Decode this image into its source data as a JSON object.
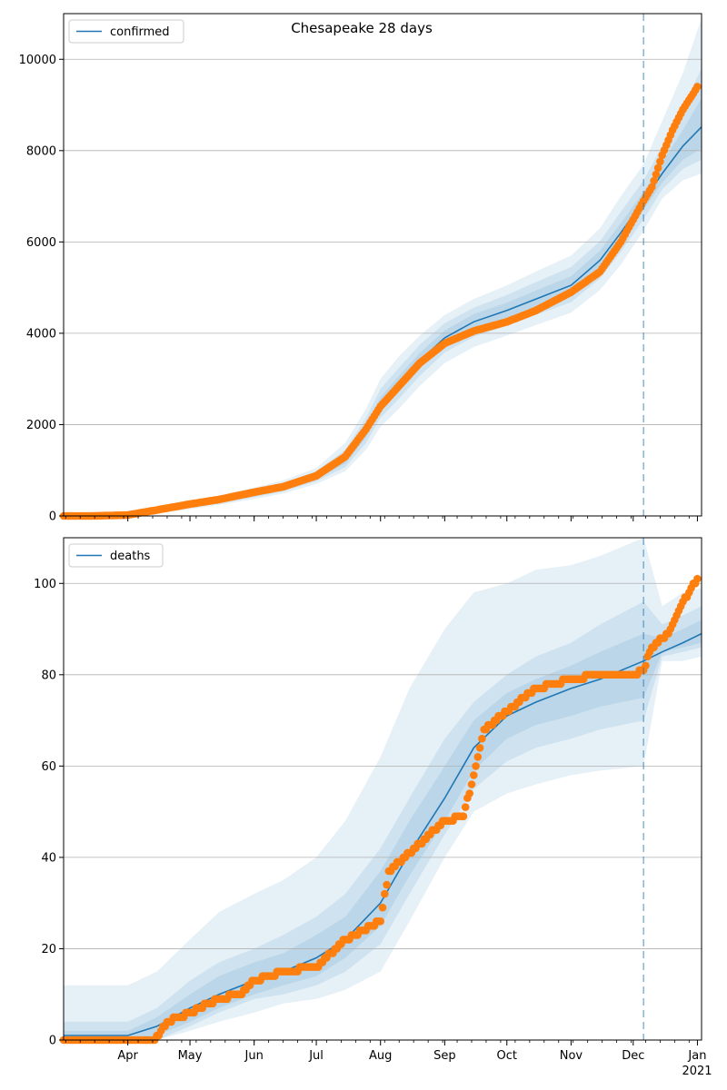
{
  "title": "Chesapeake 28 days",
  "colors": {
    "model": "#1f77b4",
    "observed": "#ff7f0e",
    "band": "#1f77b4",
    "grid": "#b0b0b0",
    "forecast_line": "#1f77b4"
  },
  "x_axis": {
    "tick_labels": [
      "Apr",
      "May",
      "Jun",
      "Jul",
      "Aug",
      "Sep",
      "Oct",
      "Nov",
      "Dec",
      "Jan"
    ],
    "year_label": "2021"
  },
  "chart_data": [
    {
      "type": "line",
      "legend": "confirmed",
      "legend_position": "top-left",
      "grid": "y",
      "xlim": [
        "2020-03-01",
        "2021-01-03"
      ],
      "ylim": [
        0,
        11000
      ],
      "yticks": [
        0,
        2000,
        4000,
        6000,
        8000,
        10000
      ],
      "forecast_start": "2020-12-06",
      "model": {
        "x": [
          "2020-03-01",
          "2020-03-15",
          "2020-04-01",
          "2020-04-15",
          "2020-05-01",
          "2020-05-15",
          "2020-06-01",
          "2020-06-15",
          "2020-07-01",
          "2020-07-15",
          "2020-07-25",
          "2020-08-01",
          "2020-08-10",
          "2020-08-20",
          "2020-09-01",
          "2020-09-15",
          "2020-10-01",
          "2020-10-15",
          "2020-11-01",
          "2020-11-15",
          "2020-11-25",
          "2020-12-06",
          "2020-12-15",
          "2020-12-25",
          "2021-01-03"
        ],
        "y": [
          0,
          0,
          20,
          120,
          230,
          330,
          480,
          620,
          860,
          1250,
          1850,
          2450,
          2900,
          3400,
          3900,
          4250,
          4500,
          4750,
          5050,
          5600,
          6200,
          6900,
          7500,
          8100,
          8520
        ]
      },
      "bands": [
        {
          "lower": [
            0,
            0,
            0,
            60,
            150,
            240,
            370,
            490,
            700,
            980,
            1450,
            1950,
            2350,
            2850,
            3350,
            3700,
            3950,
            4180,
            4450,
            4950,
            5500,
            6250,
            6950,
            7350,
            7500
          ],
          "upper": [
            10,
            20,
            50,
            180,
            320,
            440,
            620,
            780,
            1050,
            1600,
            2350,
            3000,
            3500,
            3950,
            4400,
            4750,
            5050,
            5350,
            5700,
            6300,
            7000,
            7700,
            8650,
            9700,
            10900
          ]
        },
        {
          "lower": [
            0,
            0,
            5,
            80,
            175,
            270,
            410,
            540,
            760,
            1070,
            1600,
            2150,
            2570,
            3070,
            3580,
            3920,
            4170,
            4400,
            4680,
            5200,
            5780,
            6500,
            7150,
            7600,
            7800
          ],
          "upper": [
            5,
            10,
            40,
            160,
            290,
            400,
            570,
            720,
            980,
            1450,
            2150,
            2780,
            3250,
            3750,
            4220,
            4560,
            4840,
            5120,
            5450,
            6020,
            6660,
            7350,
            8100,
            8950,
            9800
          ]
        },
        {
          "lower": [
            0,
            0,
            10,
            95,
            195,
            295,
            440,
            575,
            810,
            1150,
            1720,
            2300,
            2730,
            3230,
            3740,
            4080,
            4330,
            4560,
            4850,
            5390,
            5990,
            6700,
            7300,
            7800,
            8050
          ],
          "upper": [
            2,
            5,
            30,
            145,
            265,
            365,
            520,
            665,
            910,
            1350,
            1980,
            2600,
            3070,
            3570,
            4060,
            4420,
            4670,
            4940,
            5250,
            5810,
            6410,
            7100,
            7750,
            8450,
            9150
          ]
        }
      ],
      "observed": {
        "x": [
          "2020-03-01",
          "2020-03-15",
          "2020-04-01",
          "2020-04-15",
          "2020-05-01",
          "2020-05-15",
          "2020-06-01",
          "2020-06-15",
          "2020-07-01",
          "2020-07-15",
          "2020-07-25",
          "2020-08-01",
          "2020-08-10",
          "2020-08-20",
          "2020-09-01",
          "2020-09-15",
          "2020-10-01",
          "2020-10-15",
          "2020-11-01",
          "2020-11-15",
          "2020-11-25",
          "2020-12-06",
          "2020-12-10",
          "2020-12-15",
          "2020-12-20",
          "2020-12-25",
          "2020-12-30",
          "2021-01-01"
        ],
        "y": [
          0,
          0,
          20,
          130,
          260,
          360,
          520,
          640,
          880,
          1300,
          1900,
          2400,
          2850,
          3350,
          3780,
          4050,
          4250,
          4500,
          4900,
          5350,
          6000,
          6900,
          7200,
          7900,
          8450,
          8900,
          9250,
          9400
        ]
      }
    },
    {
      "type": "line",
      "legend": "deaths",
      "legend_position": "top-left",
      "grid": "y",
      "xlim": [
        "2020-03-01",
        "2021-01-03"
      ],
      "ylim": [
        0,
        110
      ],
      "yticks": [
        0,
        20,
        40,
        60,
        80,
        100
      ],
      "forecast_start": "2020-12-06",
      "model": {
        "x": [
          "2020-03-01",
          "2020-04-01",
          "2020-04-15",
          "2020-05-01",
          "2020-05-15",
          "2020-06-01",
          "2020-06-15",
          "2020-07-01",
          "2020-07-15",
          "2020-08-01",
          "2020-08-15",
          "2020-09-01",
          "2020-09-15",
          "2020-10-01",
          "2020-10-15",
          "2020-11-01",
          "2020-11-15",
          "2020-12-06",
          "2020-12-15",
          "2020-12-25",
          "2021-01-03"
        ],
        "y": [
          1,
          1,
          3,
          7,
          10,
          13,
          15,
          18,
          22,
          30,
          41,
          53,
          64,
          71,
          74,
          77,
          79,
          83,
          85,
          87,
          89
        ]
      },
      "bands": [
        {
          "lower": [
            0,
            0,
            0,
            2,
            4,
            6,
            8,
            9,
            11,
            15,
            26,
            40,
            50,
            54,
            56,
            58,
            59,
            60,
            83,
            83,
            84
          ],
          "upper": [
            12,
            12,
            15,
            22,
            28,
            32,
            35,
            40,
            48,
            62,
            77,
            90,
            98,
            100,
            103,
            104,
            106,
            110,
            95,
            98,
            99
          ]
        },
        {
          "lower": [
            0,
            0,
            0,
            3,
            6,
            9,
            10,
            12,
            15,
            21,
            32,
            45,
            55,
            61,
            64,
            66,
            68,
            70,
            84,
            85,
            86
          ],
          "upper": [
            4,
            4,
            7,
            13,
            17,
            20,
            23,
            27,
            32,
            42,
            53,
            66,
            74,
            80,
            84,
            87,
            91,
            96,
            91,
            93,
            95
          ]
        },
        {
          "lower": [
            0,
            0,
            1,
            4,
            7,
            10,
            12,
            14,
            18,
            25,
            36,
            48,
            59,
            66,
            69,
            71,
            73,
            75,
            85,
            86,
            87
          ],
          "upper": [
            2,
            2,
            5,
            10,
            14,
            17,
            19,
            23,
            27,
            37,
            48,
            60,
            70,
            76,
            79,
            82,
            85,
            89,
            88,
            90,
            92
          ]
        }
      ],
      "observed": {
        "x": [
          "2020-03-01",
          "2020-04-14",
          "2020-04-20",
          "2020-05-01",
          "2020-05-15",
          "2020-05-25",
          "2020-06-01",
          "2020-06-15",
          "2020-07-01",
          "2020-07-15",
          "2020-08-01",
          "2020-08-05",
          "2020-08-15",
          "2020-09-01",
          "2020-09-10",
          "2020-09-15",
          "2020-09-20",
          "2020-10-01",
          "2020-10-15",
          "2020-11-01",
          "2020-11-15",
          "2020-12-01",
          "2020-12-06",
          "2020-12-10",
          "2020-12-18",
          "2020-12-25",
          "2021-01-01"
        ],
        "y": [
          0,
          0,
          4,
          6,
          9,
          10,
          13,
          15,
          16,
          22,
          26,
          37,
          41,
          48,
          49,
          58,
          68,
          72,
          77,
          79,
          80,
          80,
          81,
          86,
          89,
          96,
          101
        ]
      }
    }
  ]
}
